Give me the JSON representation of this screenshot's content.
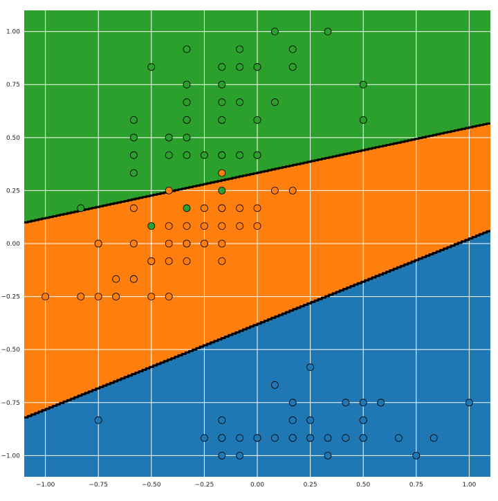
{
  "chart_data": {
    "type": "scatter",
    "title": "",
    "xlabel": "",
    "ylabel": "",
    "xlim": [
      -1.1,
      1.1
    ],
    "ylim": [
      -1.1,
      1.1
    ],
    "grid": true,
    "xticks": [
      -1.0,
      -0.75,
      -0.5,
      -0.25,
      0.0,
      0.25,
      0.5,
      0.75,
      1.0
    ],
    "yticks": [
      -1.0,
      -0.75,
      -0.5,
      -0.25,
      0.0,
      0.25,
      0.5,
      0.75,
      1.0
    ],
    "xtick_labels": [
      "−1.00",
      "−0.75",
      "−0.50",
      "−0.25",
      "0.00",
      "0.25",
      "0.50",
      "0.75",
      "1.00"
    ],
    "ytick_labels": [
      "−1.00",
      "−0.75",
      "−0.50",
      "−0.25",
      "0.00",
      "0.25",
      "0.50",
      "0.75",
      "1.00"
    ],
    "colors": {
      "class0": "#2ca02c",
      "class1": "#ff7f0e",
      "class2": "#1f77b4",
      "boundary": "#000000",
      "grid": "#ffffff",
      "point_edge": "#000000"
    },
    "regions": [
      {
        "class": "class0",
        "polygon": [
          [
            -1.1,
            0.1
          ],
          [
            1.1,
            0.57
          ],
          [
            1.1,
            1.1
          ],
          [
            -1.1,
            1.1
          ]
        ]
      },
      {
        "class": "class1",
        "polygon": [
          [
            -1.1,
            -0.82
          ],
          [
            1.1,
            0.065
          ],
          [
            1.1,
            0.57
          ],
          [
            -1.1,
            0.1
          ]
        ]
      },
      {
        "class": "class2",
        "polygon": [
          [
            -1.1,
            -1.1
          ],
          [
            1.1,
            -1.1
          ],
          [
            1.1,
            0.065
          ],
          [
            -1.1,
            -0.82
          ]
        ]
      }
    ],
    "boundaries": [
      {
        "x": [
          -1.1,
          1.1
        ],
        "y": [
          0.1,
          0.57
        ]
      },
      {
        "x": [
          -1.1,
          1.1
        ],
        "y": [
          -0.82,
          0.065
        ]
      }
    ],
    "series": [
      {
        "color": "class0",
        "x": [
          0.083,
          0.333,
          -0.333,
          -0.083,
          0.167,
          -0.5,
          -0.167,
          -0.083,
          0.0,
          0.0,
          0.167,
          -0.333,
          -0.167,
          0.5,
          -0.333,
          -0.167,
          -0.083,
          0.083,
          -0.333,
          -0.167,
          -0.583,
          -0.333,
          -0.167,
          0.0,
          0.5,
          -0.583,
          -0.417,
          -0.417,
          -0.333,
          -0.583,
          -0.417,
          -0.333,
          -0.25,
          -0.167,
          -0.167,
          -0.083,
          0.0,
          0.0,
          -0.583
        ],
        "y": [
          1.0,
          1.0,
          0.917,
          0.917,
          0.917,
          0.833,
          0.833,
          0.833,
          0.833,
          0.833,
          0.833,
          0.75,
          0.75,
          0.75,
          0.667,
          0.667,
          0.667,
          0.667,
          0.583,
          0.583,
          0.583,
          0.583,
          0.583,
          0.583,
          0.583,
          0.5,
          0.5,
          0.5,
          0.5,
          0.417,
          0.417,
          0.417,
          0.417,
          0.417,
          0.417,
          0.417,
          0.417,
          0.417,
          0.333
        ]
      },
      {
        "color": "class0",
        "x": [
          -0.833,
          -0.333,
          -0.5,
          -0.167
        ],
        "y": [
          0.167,
          0.167,
          0.083,
          0.25
        ]
      },
      {
        "color": "class1",
        "x": [
          -0.167,
          -0.417,
          0.083,
          0.167,
          -0.583,
          -0.25,
          -0.167,
          -0.083,
          0.0,
          -0.417,
          -0.333,
          -0.25,
          -0.167,
          -0.083,
          0.0,
          -0.75,
          -0.583,
          -0.417,
          -0.333,
          -0.25,
          -0.167,
          -0.5,
          -0.417,
          -0.333,
          -0.167,
          -0.667,
          -0.583,
          -1.0,
          -0.833,
          -0.75,
          -0.667,
          -0.5,
          -0.417,
          -0.75,
          -0.25,
          -0.583,
          -0.667,
          -0.167,
          -0.5,
          -0.333
        ],
        "y": [
          0.333,
          0.25,
          0.25,
          0.25,
          0.167,
          0.167,
          0.167,
          0.167,
          0.167,
          0.083,
          0.083,
          0.083,
          0.083,
          0.083,
          0.083,
          0.0,
          0.0,
          0.0,
          0.0,
          0.0,
          0.0,
          -0.083,
          -0.083,
          -0.083,
          -0.083,
          -0.167,
          -0.167,
          -0.25,
          -0.25,
          -0.25,
          -0.25,
          -0.25,
          -0.25,
          0.0,
          0.0,
          -0.167,
          -0.25,
          0.167,
          -0.083,
          0.0
        ]
      },
      {
        "color": "class2",
        "x": [
          0.25,
          0.083,
          0.167,
          0.417,
          0.5,
          0.583,
          1.0,
          -0.75,
          -0.167,
          0.167,
          0.25,
          0.5,
          -0.25,
          -0.167,
          -0.083,
          0.0,
          0.083,
          0.167,
          0.25,
          0.333,
          0.417,
          0.5,
          0.667,
          0.833,
          -0.167,
          -0.083,
          0.333,
          0.75,
          0.167,
          0.5,
          0.25,
          0.583,
          -0.167,
          0.0,
          0.5
        ],
        "y": [
          -0.583,
          -0.667,
          -0.75,
          -0.75,
          -0.75,
          -0.75,
          -0.75,
          -0.833,
          -0.833,
          -0.833,
          -0.833,
          -0.833,
          -0.917,
          -0.917,
          -0.917,
          -0.917,
          -0.917,
          -0.917,
          -0.917,
          -0.917,
          -0.917,
          -0.917,
          -0.917,
          -0.917,
          -1.0,
          -1.0,
          -1.0,
          -1.0,
          -0.917,
          -0.833,
          -0.917,
          -0.75,
          -0.917,
          -0.917,
          -0.917
        ]
      }
    ]
  }
}
